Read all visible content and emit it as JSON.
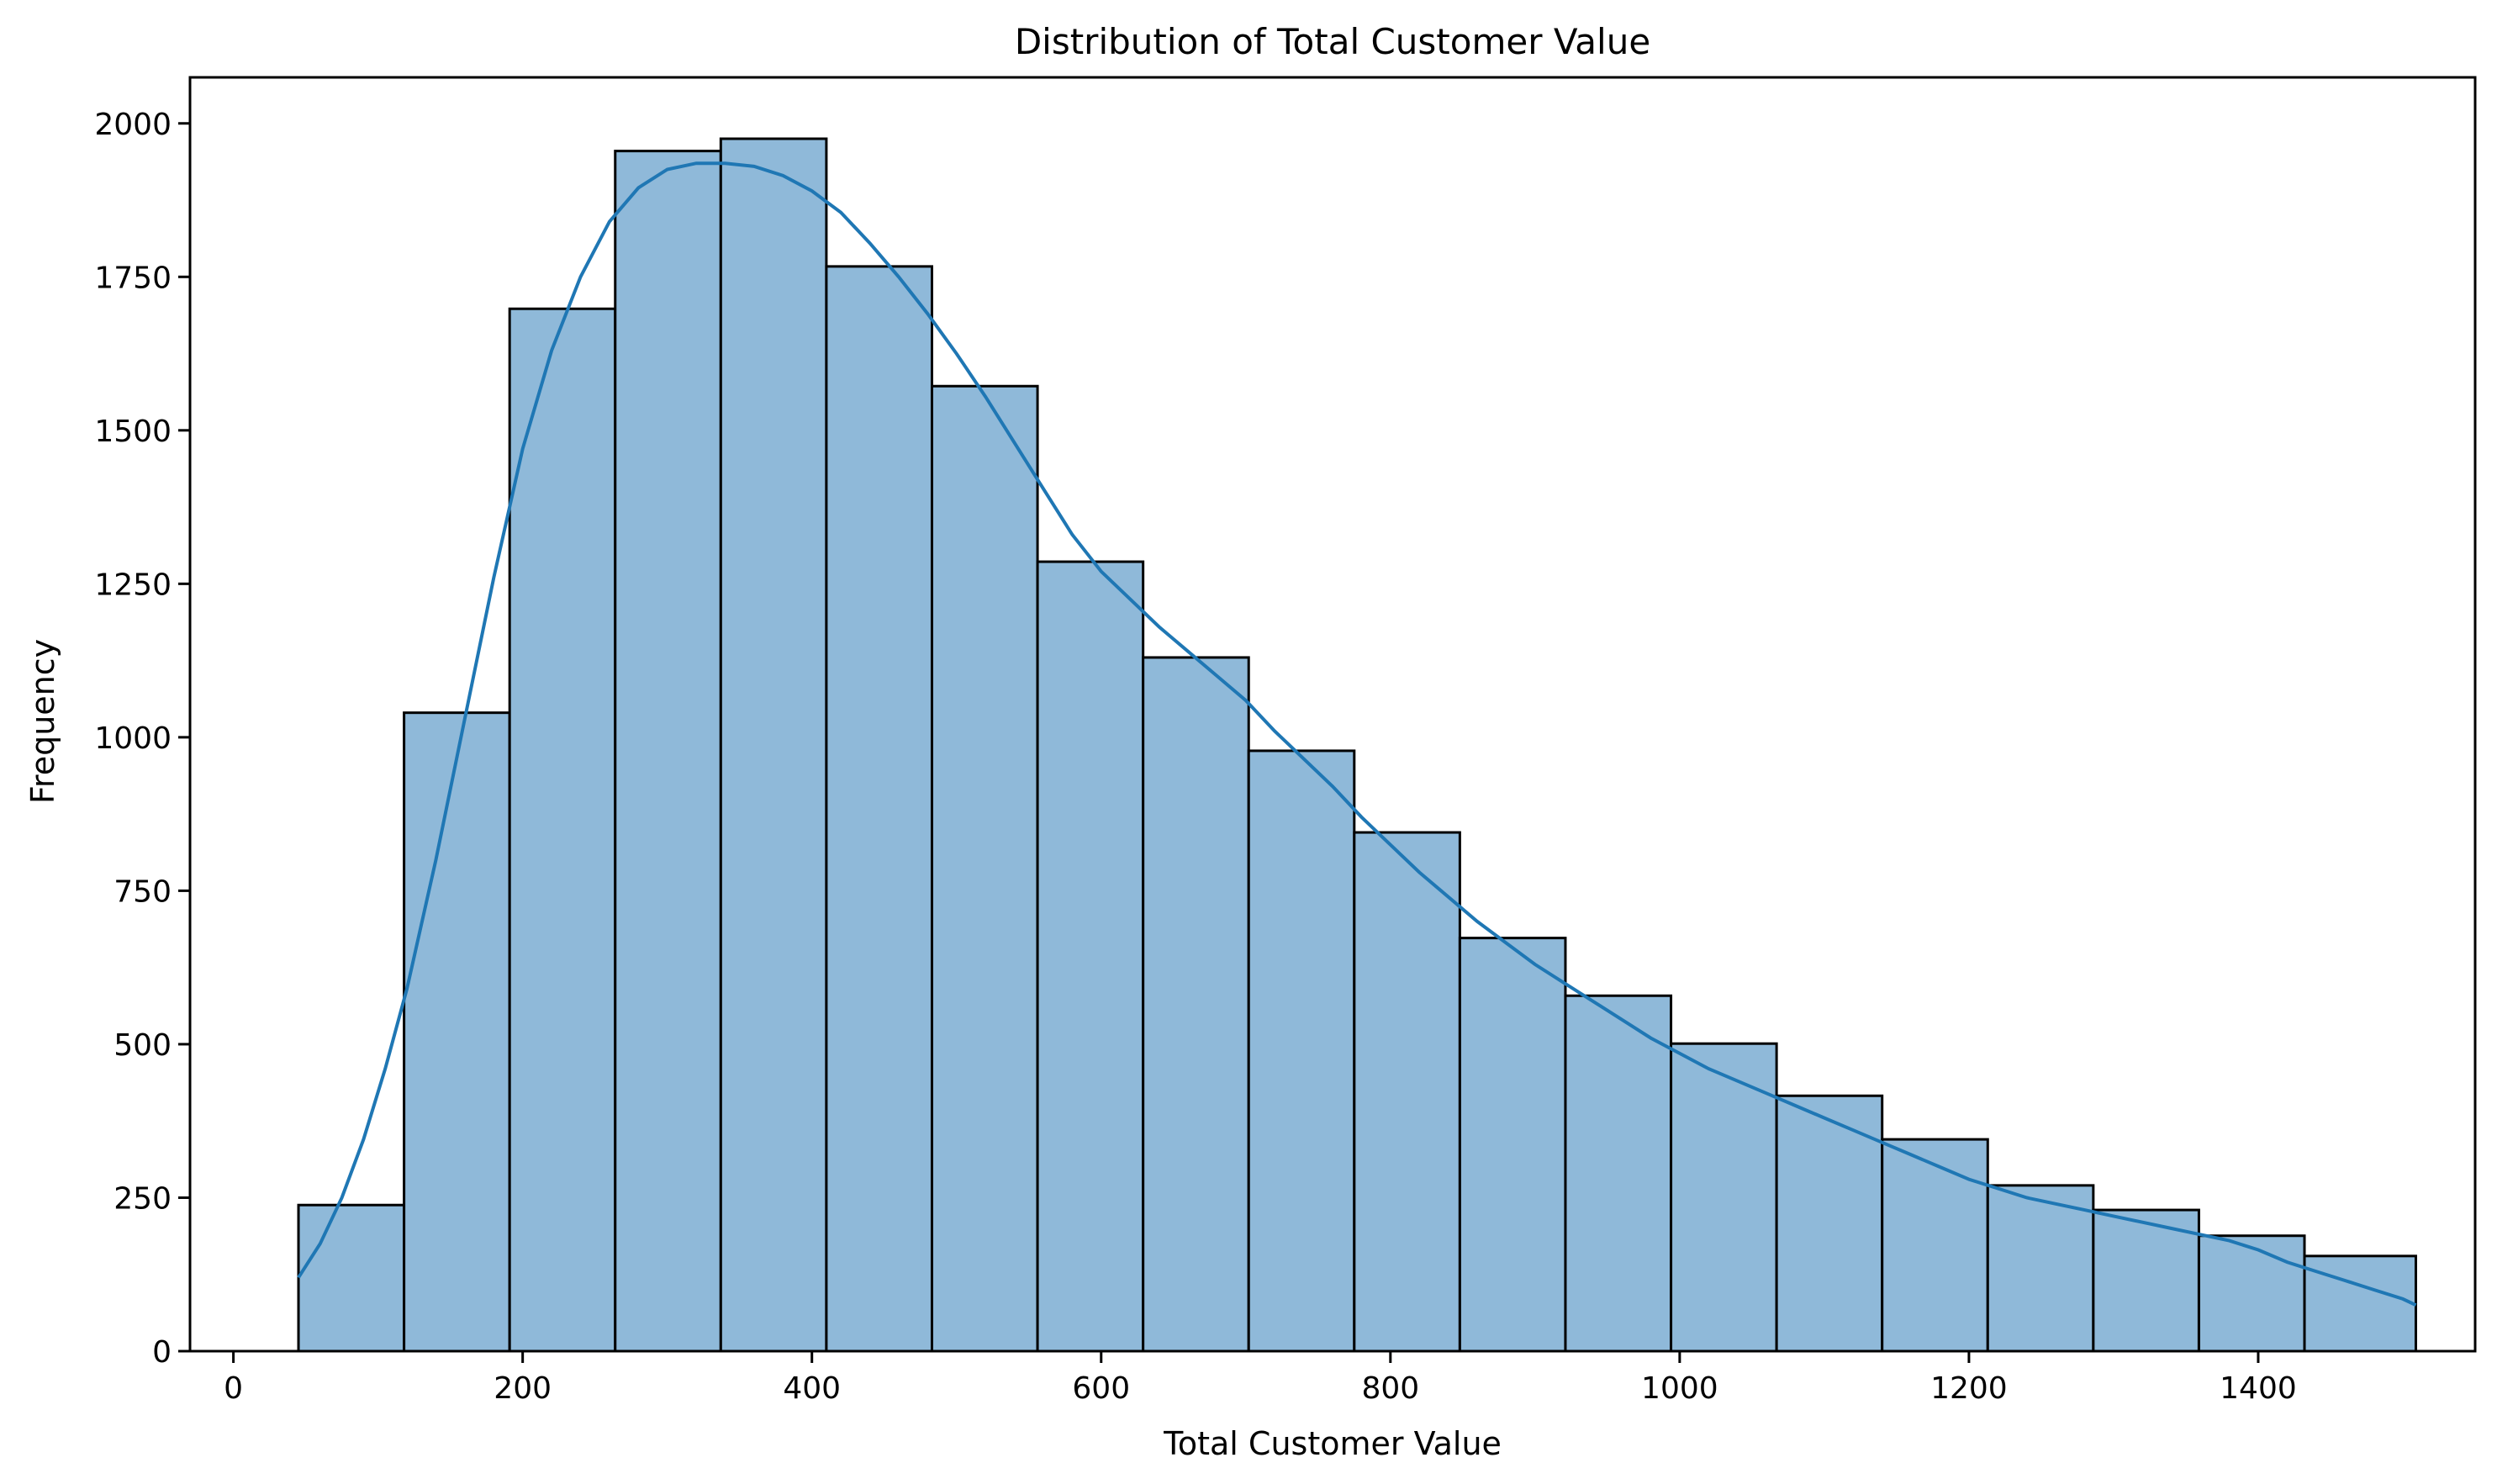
{
  "chart_data": {
    "type": "bar",
    "title": "Distribution of Total Customer Value",
    "xlabel": "Total Customer Value",
    "ylabel": "Frequency",
    "xlim": [
      -30,
      1550
    ],
    "ylim": [
      0,
      2075
    ],
    "xticks": [
      0,
      200,
      400,
      600,
      800,
      1000,
      1200,
      1400
    ],
    "yticks": [
      0,
      250,
      500,
      750,
      1000,
      1250,
      1500,
      1750,
      2000
    ],
    "bins": [
      {
        "x0": 45,
        "x1": 118,
        "value": 238
      },
      {
        "x0": 118,
        "x1": 191,
        "value": 1040
      },
      {
        "x0": 191,
        "x1": 264,
        "value": 1698
      },
      {
        "x0": 264,
        "x1": 337,
        "value": 1955
      },
      {
        "x0": 337,
        "x1": 410,
        "value": 1975
      },
      {
        "x0": 410,
        "x1": 483,
        "value": 1767
      },
      {
        "x0": 483,
        "x1": 556,
        "value": 1572
      },
      {
        "x0": 556,
        "x1": 629,
        "value": 1286
      },
      {
        "x0": 629,
        "x1": 702,
        "value": 1130
      },
      {
        "x0": 702,
        "x1": 775,
        "value": 978
      },
      {
        "x0": 775,
        "x1": 848,
        "value": 845
      },
      {
        "x0": 848,
        "x1": 921,
        "value": 673
      },
      {
        "x0": 921,
        "x1": 994,
        "value": 579
      },
      {
        "x0": 994,
        "x1": 1067,
        "value": 501
      },
      {
        "x0": 1067,
        "x1": 1140,
        "value": 416
      },
      {
        "x0": 1140,
        "x1": 1213,
        "value": 345
      },
      {
        "x0": 1213,
        "x1": 1286,
        "value": 270
      },
      {
        "x0": 1286,
        "x1": 1359,
        "value": 230
      },
      {
        "x0": 1359,
        "x1": 1432,
        "value": 188
      },
      {
        "x0": 1432,
        "x1": 1509,
        "value": 155
      }
    ],
    "kde": {
      "x": [
        45,
        60,
        75,
        90,
        105,
        120,
        140,
        160,
        180,
        200,
        220,
        240,
        260,
        280,
        300,
        320,
        340,
        360,
        380,
        400,
        420,
        440,
        460,
        480,
        500,
        520,
        540,
        560,
        580,
        600,
        620,
        640,
        660,
        680,
        700,
        720,
        740,
        760,
        780,
        800,
        820,
        840,
        860,
        880,
        900,
        920,
        940,
        960,
        980,
        1000,
        1020,
        1040,
        1060,
        1080,
        1100,
        1120,
        1140,
        1160,
        1180,
        1200,
        1220,
        1240,
        1260,
        1280,
        1300,
        1320,
        1340,
        1360,
        1380,
        1400,
        1420,
        1440,
        1460,
        1480,
        1500,
        1509
      ],
      "y": [
        120,
        175,
        250,
        345,
        460,
        590,
        800,
        1030,
        1260,
        1470,
        1630,
        1750,
        1840,
        1895,
        1925,
        1935,
        1935,
        1930,
        1915,
        1890,
        1855,
        1805,
        1750,
        1690,
        1625,
        1555,
        1480,
        1405,
        1330,
        1270,
        1225,
        1180,
        1140,
        1100,
        1060,
        1010,
        965,
        920,
        870,
        825,
        780,
        740,
        700,
        665,
        630,
        600,
        570,
        540,
        510,
        485,
        460,
        440,
        420,
        400,
        380,
        360,
        340,
        320,
        300,
        280,
        265,
        250,
        240,
        230,
        220,
        210,
        200,
        190,
        180,
        165,
        145,
        130,
        115,
        100,
        85,
        75
      ]
    },
    "colors": {
      "bar_fill": "#8fb9d9",
      "bar_edge": "#000000",
      "kde_line": "#1f77b4"
    },
    "grid": false,
    "legend": "none"
  }
}
